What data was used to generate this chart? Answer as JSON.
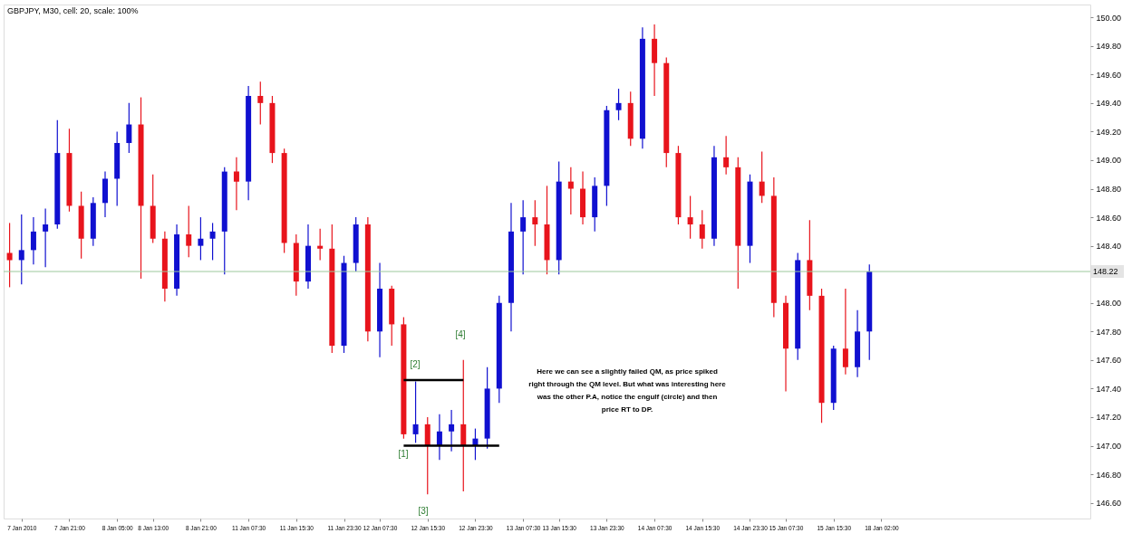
{
  "chart_data": {
    "type": "candlestick",
    "title": "GBPJPY, M30, cell: 20, scale: 100%",
    "categories": [
      null,
      "7 Jan 2010",
      null,
      null,
      null,
      "7 Jan 21:00",
      null,
      null,
      null,
      "8 Jan 05:00",
      null,
      null,
      "8 Jan 13:00",
      null,
      null,
      null,
      "8 Jan 21:00",
      null,
      null,
      null,
      "11 Jan 07:30",
      null,
      null,
      null,
      "11 Jan 15:30",
      null,
      null,
      null,
      "11 Jan 23:30",
      null,
      null,
      "12 Jan 07:30",
      null,
      null,
      null,
      "12 Jan 15:30",
      null,
      null,
      null,
      "12 Jan 23:30",
      null,
      null,
      null,
      "13 Jan 07:30",
      null,
      null,
      "13 Jan 15:30",
      null,
      null,
      null,
      "13 Jan 23:30",
      null,
      null,
      null,
      "14 Jan 07:30",
      null,
      null,
      null,
      "14 Jan 15:30",
      null,
      null,
      null,
      "14 Jan 23:30",
      null,
      null,
      "15 Jan 07:30",
      null,
      null,
      null,
      "15 Jan 15:30",
      null,
      null,
      null,
      "18 Jan 02:00",
      null,
      null,
      null,
      null,
      null,
      null,
      null,
      null,
      null,
      null,
      null,
      null,
      null,
      null,
      null,
      null,
      null
    ],
    "ohlc": [
      [
        148.35,
        148.56,
        148.11,
        148.3
      ],
      [
        148.3,
        148.62,
        148.13,
        148.37
      ],
      [
        148.37,
        148.6,
        148.27,
        148.5
      ],
      [
        148.5,
        148.66,
        148.25,
        148.55
      ],
      [
        148.55,
        149.28,
        148.52,
        149.05
      ],
      [
        149.05,
        149.22,
        148.64,
        148.68
      ],
      [
        148.68,
        148.78,
        148.31,
        148.45
      ],
      [
        148.45,
        148.74,
        148.4,
        148.7
      ],
      [
        148.7,
        148.92,
        148.6,
        148.87
      ],
      [
        148.87,
        149.2,
        148.68,
        149.12
      ],
      [
        149.12,
        149.4,
        149.05,
        149.25
      ],
      [
        149.25,
        149.44,
        148.17,
        148.68
      ],
      [
        148.68,
        148.9,
        148.42,
        148.45
      ],
      [
        148.45,
        148.5,
        148.01,
        148.1
      ],
      [
        148.1,
        148.55,
        148.05,
        148.48
      ],
      [
        148.48,
        148.68,
        148.32,
        148.4
      ],
      [
        148.4,
        148.6,
        148.3,
        148.45
      ],
      [
        148.45,
        148.56,
        148.3,
        148.5
      ],
      [
        148.5,
        148.95,
        148.2,
        148.92
      ],
      [
        148.92,
        149.02,
        148.65,
        148.85
      ],
      [
        148.85,
        149.52,
        148.72,
        149.45
      ],
      [
        149.45,
        149.55,
        149.25,
        149.4
      ],
      [
        149.4,
        149.45,
        148.98,
        149.05
      ],
      [
        149.05,
        149.08,
        148.35,
        148.42
      ],
      [
        148.42,
        148.48,
        148.05,
        148.15
      ],
      [
        148.15,
        148.55,
        148.1,
        148.4
      ],
      [
        148.4,
        148.52,
        148.3,
        148.38
      ],
      [
        148.38,
        148.55,
        147.65,
        147.7
      ],
      [
        147.7,
        148.33,
        147.65,
        148.28
      ],
      [
        148.28,
        148.6,
        148.22,
        148.55
      ],
      [
        148.55,
        148.6,
        147.73,
        147.8
      ],
      [
        147.8,
        148.28,
        147.62,
        148.1
      ],
      [
        148.1,
        148.12,
        147.7,
        147.85
      ],
      [
        147.85,
        147.9,
        147.05,
        147.08
      ],
      [
        147.08,
        147.45,
        147.02,
        147.15
      ],
      [
        147.15,
        147.2,
        146.66,
        147.0
      ],
      [
        147.0,
        147.22,
        146.9,
        147.1
      ],
      [
        147.1,
        147.25,
        146.96,
        147.15
      ],
      [
        147.15,
        147.6,
        146.68,
        147.0
      ],
      [
        147.0,
        147.12,
        146.9,
        147.05
      ],
      [
        147.05,
        147.55,
        146.98,
        147.4
      ],
      [
        147.4,
        148.05,
        147.3,
        148.0
      ],
      [
        148.0,
        148.7,
        147.8,
        148.5
      ],
      [
        148.5,
        148.72,
        148.2,
        148.6
      ],
      [
        148.6,
        148.72,
        148.4,
        148.55
      ],
      [
        148.55,
        148.82,
        148.2,
        148.3
      ],
      [
        148.3,
        148.99,
        148.2,
        148.85
      ],
      [
        148.85,
        148.95,
        148.62,
        148.8
      ],
      [
        148.8,
        148.92,
        148.55,
        148.6
      ],
      [
        148.6,
        148.88,
        148.5,
        148.82
      ],
      [
        148.82,
        149.38,
        148.68,
        149.35
      ],
      [
        149.35,
        149.5,
        149.28,
        149.4
      ],
      [
        149.4,
        149.48,
        149.1,
        149.15
      ],
      [
        149.15,
        149.93,
        149.08,
        149.85
      ],
      [
        149.85,
        149.95,
        149.45,
        149.68
      ],
      [
        149.68,
        149.72,
        148.95,
        149.05
      ],
      [
        149.05,
        149.1,
        148.55,
        148.6
      ],
      [
        148.6,
        148.75,
        148.45,
        148.55
      ],
      [
        148.55,
        148.65,
        148.38,
        148.45
      ],
      [
        148.45,
        149.1,
        148.4,
        149.02
      ],
      [
        149.02,
        149.17,
        148.9,
        148.95
      ],
      [
        148.95,
        149.02,
        148.1,
        148.4
      ],
      [
        148.4,
        148.9,
        148.28,
        148.85
      ],
      [
        148.85,
        149.06,
        148.7,
        148.75
      ],
      [
        148.75,
        148.88,
        147.9,
        148.0
      ],
      [
        148.0,
        148.05,
        147.38,
        147.68
      ],
      [
        147.68,
        148.35,
        147.6,
        148.3
      ],
      [
        148.3,
        148.58,
        147.95,
        148.05
      ],
      [
        148.05,
        148.1,
        147.16,
        147.3
      ],
      [
        147.3,
        147.7,
        147.25,
        147.68
      ],
      [
        147.68,
        148.1,
        147.5,
        147.55
      ],
      [
        147.55,
        147.95,
        147.48,
        147.8
      ],
      [
        147.8,
        148.27,
        147.6,
        148.22
      ],
      null,
      null,
      null,
      null,
      null,
      null,
      null,
      null,
      null,
      null,
      null,
      null,
      null,
      null,
      null,
      null,
      null,
      null
    ],
    "colors": [
      "#e8141c",
      "#1010d0",
      "#1010d0",
      "#1010d0",
      "#1010d0",
      "#e8141c",
      "#e8141c",
      "#1010d0",
      "#1010d0",
      "#1010d0",
      "#1010d0",
      "#e8141c",
      "#e8141c",
      "#e8141c",
      "#1010d0",
      "#e8141c",
      "#1010d0",
      "#1010d0",
      "#1010d0",
      "#e8141c",
      "#1010d0",
      "#e8141c",
      "#e8141c",
      "#e8141c",
      "#e8141c",
      "#1010d0",
      "#e8141c",
      "#e8141c",
      "#1010d0",
      "#1010d0",
      "#e8141c",
      "#1010d0",
      "#e8141c",
      "#e8141c",
      "#1010d0",
      "#e8141c",
      "#1010d0",
      "#1010d0",
      "#e8141c",
      "#1010d0",
      "#1010d0",
      "#1010d0",
      "#1010d0",
      "#1010d0",
      "#e8141c",
      "#e8141c",
      "#1010d0",
      "#e8141c",
      "#e8141c",
      "#1010d0",
      "#1010d0",
      "#1010d0",
      "#e8141c",
      "#1010d0",
      "#e8141c",
      "#e8141c",
      "#e8141c",
      "#e8141c",
      "#e8141c",
      "#1010d0",
      "#e8141c",
      "#e8141c",
      "#1010d0",
      "#e8141c",
      "#e8141c",
      "#e8141c",
      "#1010d0",
      "#e8141c",
      "#e8141c",
      "#1010d0",
      "#e8141c",
      "#1010d0",
      "#1010d0",
      null,
      null,
      null,
      null,
      null,
      null,
      null,
      null,
      null,
      null,
      null,
      null,
      null,
      null,
      null,
      null,
      null,
      null
    ],
    "series": [
      {
        "type": "line",
        "color": "#000000",
        "values": [
          null,
          null,
          null,
          null,
          null,
          null,
          null,
          null,
          null,
          null,
          null,
          null,
          null,
          null,
          null,
          null,
          null,
          null,
          null,
          null,
          null,
          null,
          null,
          null,
          null,
          null,
          null,
          null,
          null,
          null,
          null,
          null,
          null,
          147.46,
          147.46,
          147.46,
          147.46,
          147.46,
          147.46,
          null,
          null,
          null,
          null,
          null,
          null,
          null,
          null,
          null,
          null,
          null,
          null,
          null,
          null,
          null,
          null,
          null,
          null,
          null,
          null,
          null,
          null,
          null,
          null,
          null,
          null,
          null,
          null,
          null,
          null,
          null,
          null,
          null,
          null,
          null,
          null,
          null,
          null,
          null,
          null,
          null,
          null,
          null,
          null,
          null,
          null,
          null,
          null,
          null,
          null,
          null,
          null
        ]
      },
      {
        "type": "line",
        "color": "#000000",
        "values": [
          null,
          null,
          null,
          null,
          null,
          null,
          null,
          null,
          null,
          null,
          null,
          null,
          null,
          null,
          null,
          null,
          null,
          null,
          null,
          null,
          null,
          null,
          null,
          null,
          null,
          null,
          null,
          null,
          null,
          null,
          null,
          null,
          null,
          147.0,
          147.0,
          147.0,
          147.0,
          147.0,
          147.0,
          147.0,
          147.0,
          147.0,
          null,
          null,
          null,
          null,
          null,
          null,
          null,
          null,
          null,
          null,
          null,
          null,
          null,
          null,
          null,
          null,
          null,
          null,
          null,
          null,
          null,
          null,
          null,
          null,
          null,
          null,
          null,
          null,
          null,
          null,
          null,
          null,
          null,
          null,
          null,
          null,
          null,
          null,
          null,
          null,
          null,
          null,
          null,
          null,
          null,
          null,
          null,
          null,
          null
        ]
      }
    ],
    "ylim": [
      146.49,
      150.09
    ],
    "yticks": [
      {
        "value": 146.6,
        "label": "146.60"
      },
      {
        "value": 146.8,
        "label": "146.80"
      },
      {
        "value": 147.0,
        "label": "147.00"
      },
      {
        "value": 147.2,
        "label": "147.20"
      },
      {
        "value": 147.4,
        "label": "147.40"
      },
      {
        "value": 147.6,
        "label": "147.60"
      },
      {
        "value": 147.8,
        "label": "147.80"
      },
      {
        "value": 148.0,
        "label": "148.00"
      },
      {
        "value": 148.4,
        "label": "148.40"
      },
      {
        "value": 148.6,
        "label": "148.60"
      },
      {
        "value": 148.8,
        "label": "148.80"
      },
      {
        "value": 149.0,
        "label": "149.00"
      },
      {
        "value": 149.2,
        "label": "149.20"
      },
      {
        "value": 149.4,
        "label": "149.40"
      },
      {
        "value": 149.6,
        "label": "149.60"
      },
      {
        "value": 149.8,
        "label": "149.80"
      },
      {
        "value": 150.0,
        "label": "150.00"
      }
    ],
    "ref_lines": [
      {
        "axis": "y",
        "value": 148.22,
        "label": "148.22",
        "color": "#9cc89c"
      }
    ],
    "annotations": [
      "[1]",
      "[2]",
      "[3]",
      "[4]",
      "Here we can see a slightly failed QM, as price spiked right through the QM level. But what was interesting here was the other P.A, notice the engulf (circle) and then price RT to DP."
    ],
    "grid": false
  }
}
